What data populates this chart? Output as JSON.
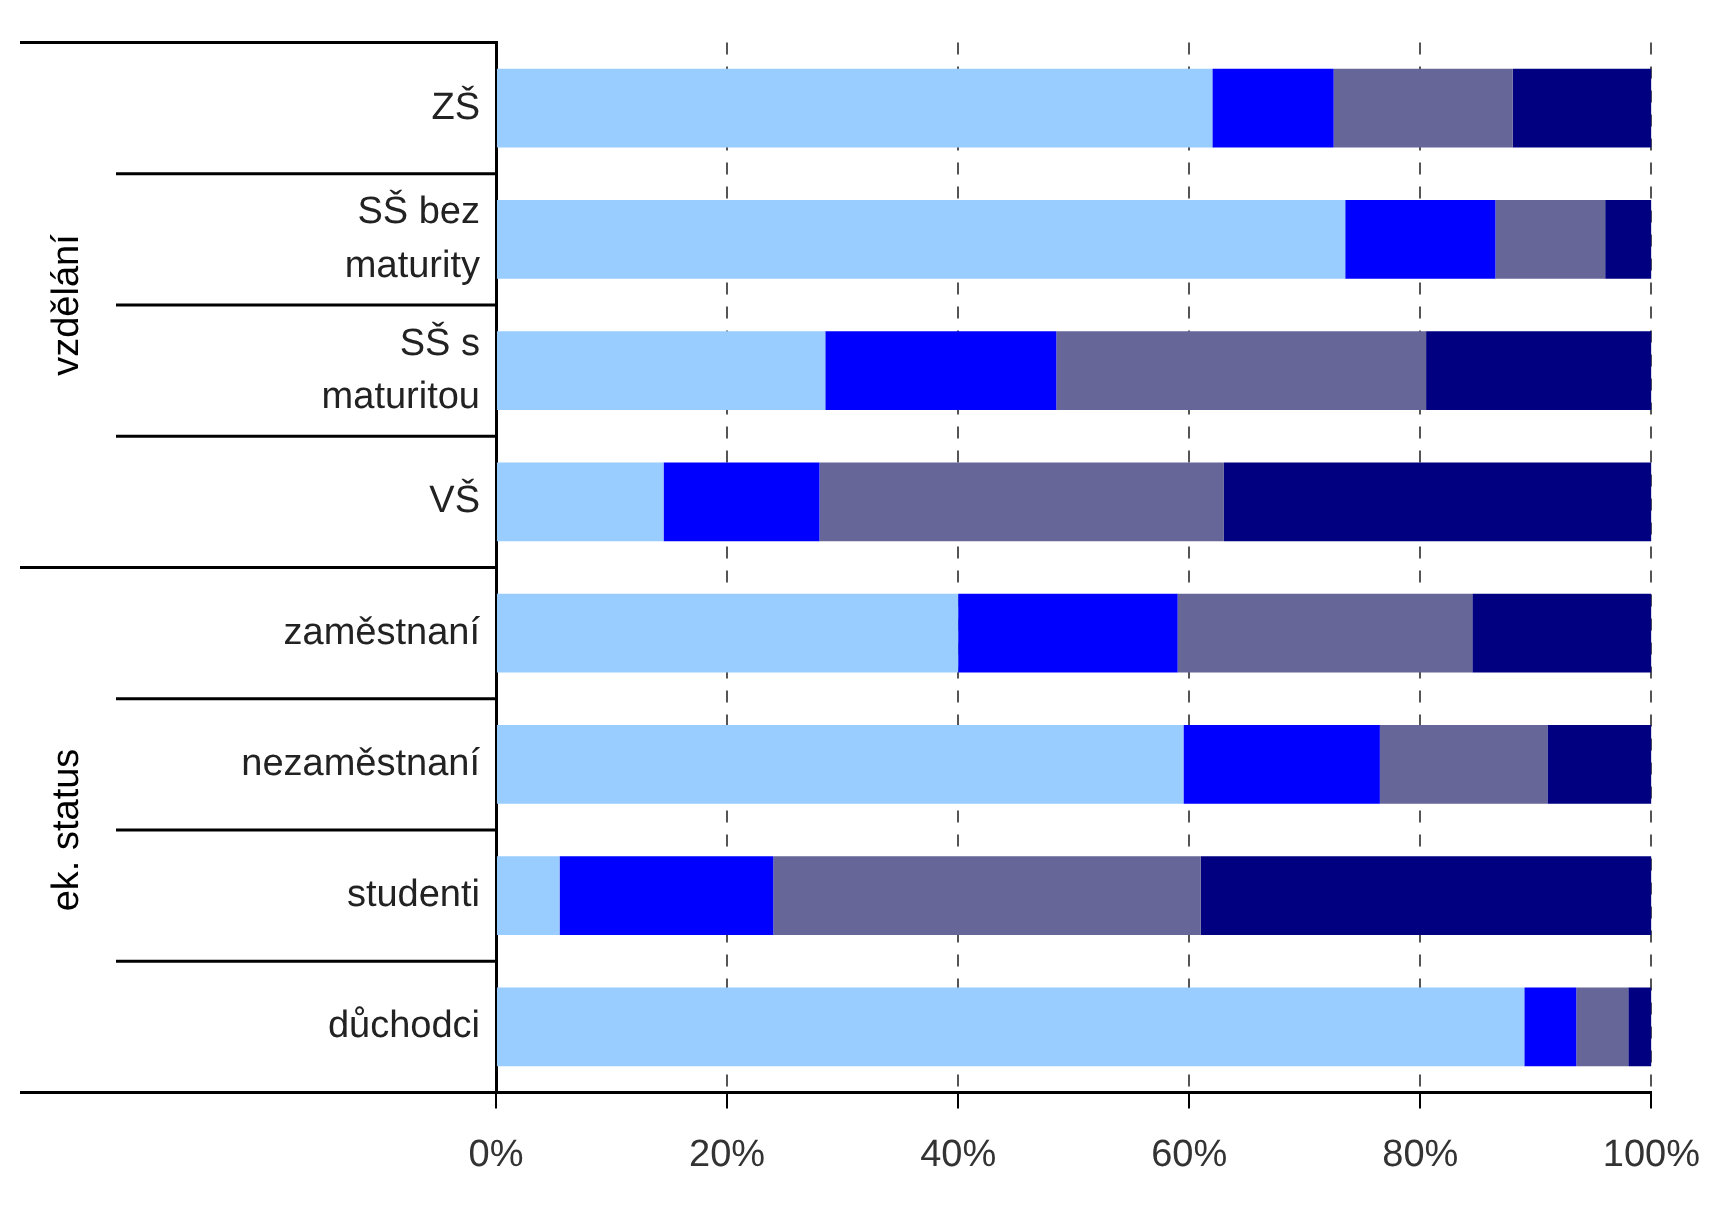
{
  "chart_data": {
    "type": "bar",
    "orientation": "horizontal",
    "stacked": true,
    "categories": [
      "ZŠ",
      "SŠ bez maturity",
      "SŠ s maturitou",
      "VŠ",
      "zaměstnaní",
      "nezaměstnaní",
      "studenti",
      "důchodci"
    ],
    "series": [
      {
        "color": "#99ccff",
        "values": [
          62,
          73.5,
          28.5,
          14.5,
          40,
          59.5,
          5.5,
          89
        ]
      },
      {
        "color": "#0000ff",
        "values": [
          10.5,
          13,
          20,
          13.5,
          19,
          17,
          18.5,
          4.5
        ]
      },
      {
        "color": "#666699",
        "values": [
          15.5,
          9.5,
          32,
          35,
          25.5,
          14.5,
          37,
          4.5
        ]
      },
      {
        "color": "#000080",
        "values": [
          12,
          4,
          19.5,
          37,
          15.5,
          9,
          39,
          2
        ]
      }
    ],
    "xlim": [
      0,
      100
    ],
    "xticks": [
      {
        "value": 0,
        "label": "0%"
      },
      {
        "value": 20,
        "label": "20%"
      },
      {
        "value": 40,
        "label": "40%"
      },
      {
        "value": 60,
        "label": "60%"
      },
      {
        "value": 80,
        "label": "80%"
      },
      {
        "value": 100,
        "label": "100%"
      }
    ],
    "grid": "x",
    "legend": false,
    "annotations": [
      "vzdělání",
      "ek. status"
    ]
  }
}
